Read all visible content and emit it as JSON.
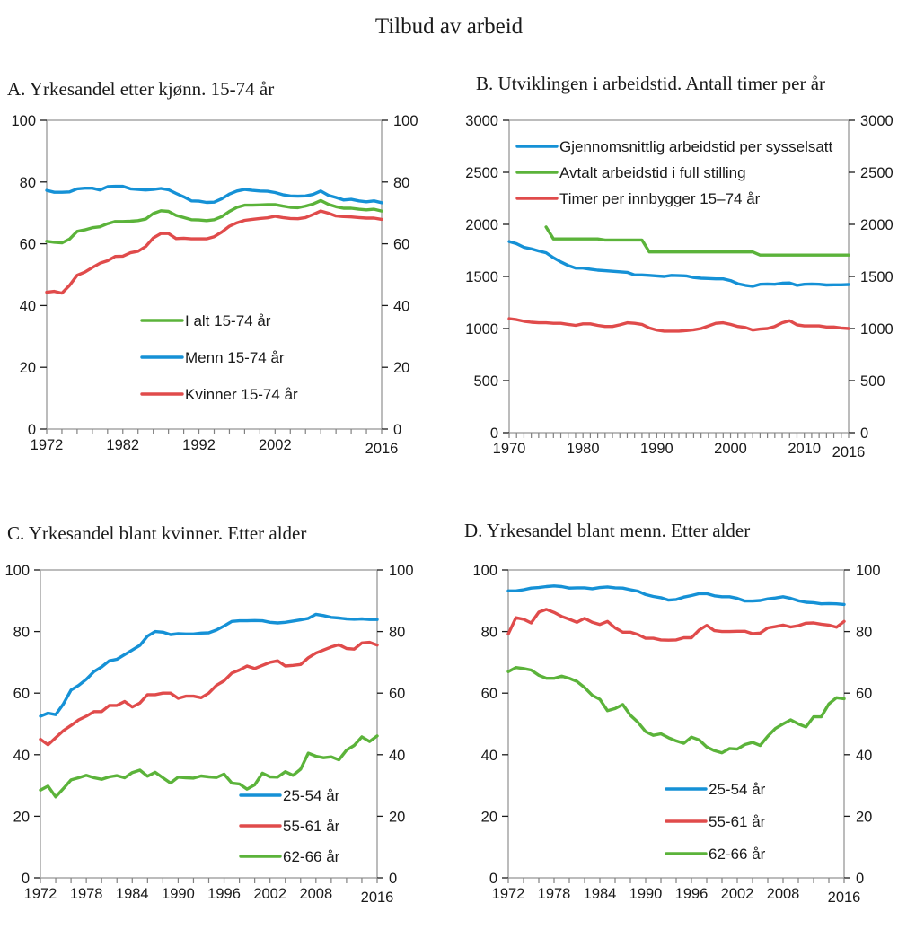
{
  "figure_title": "Tilbud av arbeid",
  "colors": {
    "blue": "#1591D6",
    "green": "#5BB33A",
    "red": "#E04B4B"
  },
  "chart_data": [
    {
      "id": "A",
      "type": "line",
      "title": "A.  Yrkesandel etter kjønn. 15-74 år",
      "xlabel": "",
      "ylabel": "",
      "xlim": [
        1972,
        2016
      ],
      "ylim": [
        0,
        100
      ],
      "y_ticks": [
        0,
        20,
        40,
        60,
        80,
        100
      ],
      "x_tick_labels": [
        "1972",
        "1982",
        "1992",
        "2002",
        "2016"
      ],
      "x_tick_label_values": [
        1972,
        1982,
        1992,
        2002,
        2016
      ],
      "minor_tick_step": 2,
      "secondary_y_axis": true,
      "legend_position": "lower-center",
      "x": [
        1972,
        1973,
        1974,
        1975,
        1976,
        1977,
        1978,
        1979,
        1980,
        1981,
        1982,
        1983,
        1984,
        1985,
        1986,
        1987,
        1988,
        1989,
        1990,
        1991,
        1992,
        1993,
        1994,
        1995,
        1996,
        1997,
        1998,
        1999,
        2000,
        2001,
        2002,
        2003,
        2004,
        2005,
        2006,
        2007,
        2008,
        2009,
        2010,
        2011,
        2012,
        2013,
        2014,
        2015,
        2016
      ],
      "series": [
        {
          "name": "I alt 15-74 år",
          "color": "#5BB33A",
          "values": [
            60.8,
            60.5,
            60.3,
            61.5,
            64.0,
            64.5,
            65.2,
            65.5,
            66.5,
            67.2,
            67.2,
            67.3,
            67.5,
            68.0,
            69.8,
            70.7,
            70.5,
            69.2,
            68.5,
            67.8,
            67.7,
            67.5,
            67.8,
            68.8,
            70.5,
            71.8,
            72.5,
            72.5,
            72.6,
            72.7,
            72.7,
            72.2,
            71.8,
            71.7,
            72.2,
            72.9,
            74.0,
            72.8,
            72.0,
            71.5,
            71.5,
            71.2,
            71.0,
            71.2,
            70.6
          ]
        },
        {
          "name": "Menn 15-74 år",
          "color": "#1591D6",
          "values": [
            77.3,
            76.7,
            76.7,
            76.8,
            77.8,
            78.0,
            78.0,
            77.4,
            78.5,
            78.6,
            78.6,
            77.8,
            77.6,
            77.4,
            77.6,
            77.9,
            77.5,
            76.3,
            75.2,
            73.9,
            73.8,
            73.4,
            73.5,
            74.6,
            76.1,
            77.1,
            77.6,
            77.3,
            77.1,
            77.0,
            76.6,
            75.9,
            75.5,
            75.4,
            75.5,
            76.0,
            77.1,
            75.7,
            75.0,
            74.2,
            74.4,
            73.9,
            73.6,
            73.9,
            73.3
          ]
        },
        {
          "name": "Kvinner 15-74 år",
          "color": "#E04B4B",
          "values": [
            44.3,
            44.6,
            44.0,
            46.5,
            49.8,
            50.8,
            52.3,
            53.7,
            54.5,
            55.9,
            56.0,
            57.1,
            57.6,
            59.1,
            61.9,
            63.3,
            63.3,
            61.7,
            61.8,
            61.6,
            61.6,
            61.6,
            62.3,
            63.8,
            65.7,
            66.8,
            67.6,
            67.9,
            68.2,
            68.4,
            68.9,
            68.5,
            68.2,
            68.1,
            68.5,
            69.5,
            70.6,
            69.9,
            69.0,
            68.8,
            68.7,
            68.5,
            68.3,
            68.3,
            67.9
          ]
        }
      ]
    },
    {
      "id": "B",
      "type": "line",
      "title": "B.  Utviklingen i arbeidstid. Antall timer per år",
      "xlabel": "",
      "ylabel": "",
      "xlim": [
        1970,
        2016
      ],
      "ylim": [
        0,
        3000
      ],
      "y_ticks": [
        0,
        500,
        1000,
        1500,
        2000,
        2500,
        3000
      ],
      "x_tick_labels": [
        "1970",
        "1980",
        "1990",
        "2000",
        "2010",
        "2016"
      ],
      "x_tick_label_values": [
        1970,
        1980,
        1990,
        2000,
        2010,
        2016
      ],
      "minor_tick_step": 1,
      "secondary_y_axis": true,
      "legend_position": "top-left",
      "x": [
        1970,
        1971,
        1972,
        1973,
        1974,
        1975,
        1976,
        1977,
        1978,
        1979,
        1980,
        1981,
        1982,
        1983,
        1984,
        1985,
        1986,
        1987,
        1988,
        1989,
        1990,
        1991,
        1992,
        1993,
        1994,
        1995,
        1996,
        1997,
        1998,
        1999,
        2000,
        2001,
        2002,
        2003,
        2004,
        2005,
        2006,
        2007,
        2008,
        2009,
        2010,
        2011,
        2012,
        2013,
        2014,
        2015,
        2016
      ],
      "series": [
        {
          "name": "Gjennomsnittlig arbeidstid per sysselsatt",
          "color": "#1591D6",
          "values": [
            1835,
            1815,
            1780,
            1765,
            1745,
            1728,
            1680,
            1640,
            1605,
            1580,
            1580,
            1570,
            1560,
            1555,
            1550,
            1545,
            1540,
            1515,
            1515,
            1510,
            1505,
            1500,
            1510,
            1508,
            1505,
            1490,
            1483,
            1480,
            1477,
            1477,
            1460,
            1430,
            1415,
            1405,
            1425,
            1428,
            1425,
            1435,
            1438,
            1415,
            1425,
            1428,
            1425,
            1418,
            1420,
            1420,
            1422
          ]
        },
        {
          "name": "Avtalt arbeidstid i full stilling",
          "color": "#5BB33A",
          "values": [
            null,
            null,
            null,
            null,
            null,
            1975,
            1860,
            1860,
            1860,
            1860,
            1860,
            1860,
            1860,
            1850,
            1850,
            1850,
            1850,
            1850,
            1850,
            1735,
            1735,
            1735,
            1735,
            1735,
            1735,
            1735,
            1735,
            1735,
            1735,
            1735,
            1735,
            1735,
            1735,
            1735,
            1705,
            1705,
            1705,
            1705,
            1705,
            1705,
            1705,
            1705,
            1705,
            1705,
            1705,
            1705,
            1705
          ]
        },
        {
          "name": "Timer per innbygger 15–74 år",
          "color": "#E04B4B",
          "values": [
            1095,
            1085,
            1070,
            1060,
            1055,
            1055,
            1050,
            1050,
            1040,
            1030,
            1045,
            1045,
            1030,
            1020,
            1020,
            1035,
            1055,
            1050,
            1040,
            1005,
            985,
            975,
            975,
            975,
            980,
            988,
            1000,
            1025,
            1050,
            1055,
            1040,
            1020,
            1010,
            985,
            995,
            1000,
            1020,
            1055,
            1075,
            1035,
            1025,
            1025,
            1025,
            1015,
            1015,
            1005,
            1000
          ]
        }
      ]
    },
    {
      "id": "C",
      "type": "line",
      "title": "C.  Yrkesandel blant kvinner. Etter alder",
      "xlabel": "",
      "ylabel": "",
      "xlim": [
        1972,
        2016
      ],
      "ylim": [
        0,
        100
      ],
      "y_ticks": [
        0,
        20,
        40,
        60,
        80,
        100
      ],
      "x_tick_labels": [
        "1972",
        "1978",
        "1984",
        "1990",
        "1996",
        "2002",
        "2008",
        "2016"
      ],
      "x_tick_label_values": [
        1972,
        1978,
        1984,
        1990,
        1996,
        2002,
        2008,
        2016
      ],
      "minor_tick_step": 2,
      "secondary_y_axis": true,
      "legend_position": "lower-center-right",
      "x": [
        1972,
        1973,
        1974,
        1975,
        1976,
        1977,
        1978,
        1979,
        1980,
        1981,
        1982,
        1983,
        1984,
        1985,
        1986,
        1987,
        1988,
        1989,
        1990,
        1991,
        1992,
        1993,
        1994,
        1995,
        1996,
        1997,
        1998,
        1999,
        2000,
        2001,
        2002,
        2003,
        2004,
        2005,
        2006,
        2007,
        2008,
        2009,
        2010,
        2011,
        2012,
        2013,
        2014,
        2015,
        2016
      ],
      "series": [
        {
          "name": "25-54 år",
          "color": "#1591D6",
          "values": [
            52.5,
            53.5,
            53.0,
            56.5,
            61.0,
            62.5,
            64.5,
            67.0,
            68.5,
            70.5,
            71.0,
            72.5,
            74.0,
            75.5,
            78.5,
            80.0,
            79.8,
            79.0,
            79.3,
            79.2,
            79.2,
            79.5,
            79.6,
            80.5,
            81.8,
            83.3,
            83.5,
            83.5,
            83.6,
            83.5,
            83.0,
            82.8,
            83.0,
            83.4,
            83.8,
            84.3,
            85.6,
            85.2,
            84.6,
            84.4,
            84.1,
            84.0,
            84.1,
            83.9,
            83.9
          ]
        },
        {
          "name": "55-61 år",
          "color": "#E04B4B",
          "values": [
            45.0,
            43.2,
            45.5,
            47.8,
            49.5,
            51.3,
            52.5,
            54.0,
            54.0,
            56.0,
            56.0,
            57.3,
            55.5,
            56.8,
            59.5,
            59.5,
            60.0,
            60.0,
            58.3,
            59.0,
            59.0,
            58.5,
            60.0,
            62.5,
            64.0,
            66.5,
            67.5,
            68.8,
            68.0,
            69.0,
            70.0,
            70.5,
            68.8,
            69.0,
            69.3,
            71.5,
            73.0,
            74.0,
            75.0,
            75.7,
            74.5,
            74.3,
            76.3,
            76.5,
            75.6
          ]
        },
        {
          "name": "62-66 år",
          "color": "#5BB33A",
          "values": [
            28.5,
            29.8,
            26.3,
            29.0,
            31.8,
            32.5,
            33.3,
            32.5,
            32.0,
            32.8,
            33.2,
            32.5,
            34.2,
            35.0,
            33.0,
            34.3,
            32.5,
            30.8,
            32.7,
            32.5,
            32.4,
            33.1,
            32.8,
            32.6,
            33.7,
            30.8,
            30.5,
            28.8,
            30.2,
            34.0,
            32.8,
            32.7,
            34.5,
            33.3,
            35.3,
            40.5,
            39.5,
            39.0,
            39.3,
            38.3,
            41.5,
            43.0,
            45.8,
            44.3,
            46.1
          ]
        }
      ]
    },
    {
      "id": "D",
      "type": "line",
      "title": "D.   Yrkesandel blant menn. Etter alder",
      "xlabel": "",
      "ylabel": "",
      "xlim": [
        1972,
        2016
      ],
      "ylim": [
        0,
        100
      ],
      "y_ticks": [
        0,
        20,
        40,
        60,
        80,
        100
      ],
      "x_tick_labels": [
        "1972",
        "1978",
        "1984",
        "1990",
        "1996",
        "2002",
        "2008",
        "2016"
      ],
      "x_tick_label_values": [
        1972,
        1978,
        1984,
        1990,
        1996,
        2002,
        2008,
        2016
      ],
      "minor_tick_step": 2,
      "secondary_y_axis": true,
      "legend_position": "lower-center-right",
      "x": [
        1972,
        1973,
        1974,
        1975,
        1976,
        1977,
        1978,
        1979,
        1980,
        1981,
        1982,
        1983,
        1984,
        1985,
        1986,
        1987,
        1988,
        1989,
        1990,
        1991,
        1992,
        1993,
        1994,
        1995,
        1996,
        1997,
        1998,
        1999,
        2000,
        2001,
        2002,
        2003,
        2004,
        2005,
        2006,
        2007,
        2008,
        2009,
        2010,
        2011,
        2012,
        2013,
        2014,
        2015,
        2016
      ],
      "series": [
        {
          "name": "25-54 år",
          "color": "#1591D6",
          "values": [
            93.2,
            93.2,
            93.6,
            94.1,
            94.3,
            94.6,
            94.8,
            94.6,
            94.1,
            94.2,
            94.2,
            93.9,
            94.3,
            94.5,
            94.2,
            94.1,
            93.6,
            93.1,
            92.0,
            91.4,
            91.0,
            90.2,
            90.4,
            91.2,
            91.7,
            92.3,
            92.3,
            91.6,
            91.3,
            91.3,
            90.8,
            89.9,
            89.9,
            90.1,
            90.6,
            90.9,
            91.3,
            90.8,
            90.0,
            89.5,
            89.4,
            89.0,
            89.1,
            89.0,
            88.8
          ]
        },
        {
          "name": "55-61 år",
          "color": "#E04B4B",
          "values": [
            79.2,
            84.5,
            84.0,
            82.8,
            86.3,
            87.2,
            86.2,
            84.9,
            84.0,
            83.0,
            84.3,
            83.0,
            82.3,
            83.3,
            81.2,
            79.8,
            79.8,
            79.0,
            77.8,
            77.8,
            77.3,
            77.2,
            77.3,
            78.0,
            78.0,
            80.5,
            82.0,
            80.3,
            80.0,
            80.0,
            80.1,
            80.1,
            79.3,
            79.5,
            81.2,
            81.6,
            82.1,
            81.5,
            81.9,
            82.7,
            82.8,
            82.4,
            82.1,
            81.4,
            83.3
          ]
        },
        {
          "name": "62-66 år",
          "color": "#5BB33A",
          "values": [
            67.0,
            68.3,
            68.0,
            67.5,
            65.8,
            64.8,
            64.8,
            65.5,
            64.8,
            63.8,
            61.8,
            59.3,
            58.0,
            54.3,
            55.0,
            56.3,
            52.8,
            50.5,
            47.5,
            46.3,
            46.8,
            45.5,
            44.5,
            43.7,
            45.7,
            44.8,
            42.5,
            41.3,
            40.6,
            42.0,
            41.8,
            43.3,
            44.0,
            43.0,
            46.0,
            48.5,
            50.0,
            51.3,
            50.0,
            49.0,
            52.3,
            52.3,
            56.5,
            58.5,
            58.2
          ]
        }
      ]
    }
  ]
}
